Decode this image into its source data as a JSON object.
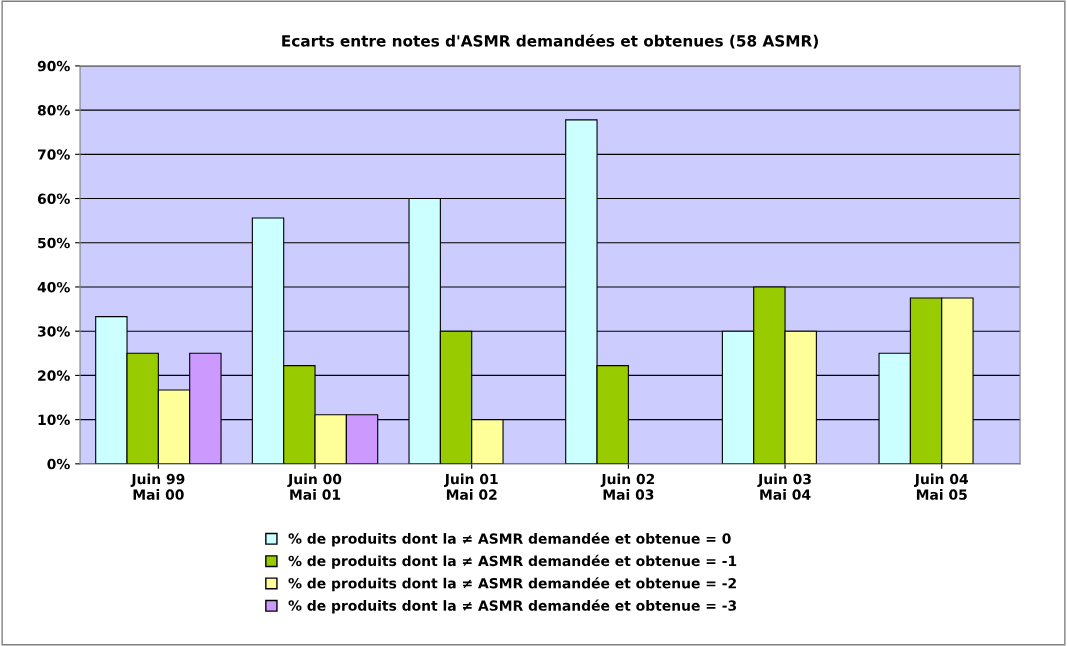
{
  "chart_data": {
    "type": "bar",
    "title": "Ecarts entre notes d'ASMR demandées et obtenues (58 ASMR)",
    "categories": [
      "Juin 99\nMai 00",
      "Juin 00\nMai 01",
      "Juin 01\nMai 02",
      "Juin 02\nMai 03",
      "Juin 03\nMai 04",
      "Juin 04\nMai 05"
    ],
    "series": [
      {
        "name": "% de produits dont la ≠ ASMR demandée et obtenue = 0",
        "color": "#ccffff",
        "values": [
          33.3,
          55.6,
          60,
          77.8,
          30,
          25
        ]
      },
      {
        "name": "% de produits dont la ≠ ASMR demandée et obtenue = -1",
        "color": "#99cc00",
        "values": [
          25,
          22.2,
          30,
          22.2,
          40,
          37.5
        ]
      },
      {
        "name": "% de produits dont la ≠ ASMR demandée et obtenue = -2",
        "color": "#ffff99",
        "values": [
          16.7,
          11.1,
          10,
          null,
          30,
          37.5
        ]
      },
      {
        "name": "% de produits dont la ≠ ASMR demandée et obtenue = -3",
        "color": "#cc99ff",
        "values": [
          25,
          11.1,
          null,
          null,
          null,
          null
        ]
      }
    ],
    "ylim": [
      0,
      90
    ],
    "yticks": [
      {
        "value": 0,
        "label": "0%"
      },
      {
        "value": 10,
        "label": "10%"
      },
      {
        "value": 20,
        "label": "20%"
      },
      {
        "value": 30,
        "label": "30%"
      },
      {
        "value": 40,
        "label": "40%"
      },
      {
        "value": 50,
        "label": "50%"
      },
      {
        "value": 60,
        "label": "60%"
      },
      {
        "value": 70,
        "label": "70%"
      },
      {
        "value": 80,
        "label": "80%"
      },
      {
        "value": 90,
        "label": "90%"
      }
    ],
    "grid": "y",
    "legend": "bottom"
  }
}
